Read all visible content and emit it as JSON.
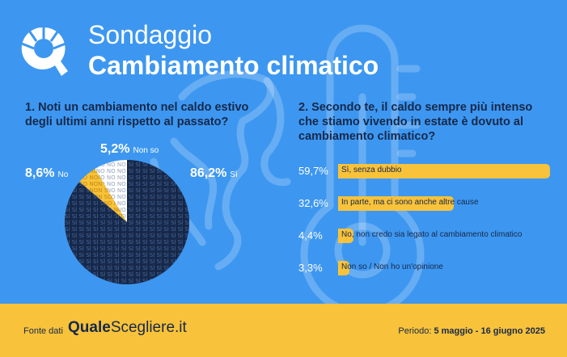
{
  "header": {
    "title_small": "Sondaggio",
    "title_big": "Cambiamento climatico"
  },
  "question1": "1. Noti un cambiamento nel caldo estivo degli ultimi anni rispetto al passato?",
  "question2": "2. Secondo te, il caldo sempre più intenso che stiamo vivendo in estate è dovuto al cambiamento climatico?",
  "chart_data": [
    {
      "type": "pie",
      "title": "1. Noti un cambiamento nel caldo estivo degli ultimi anni rispetto al passato?",
      "slices": [
        {
          "label": "Sì",
          "value": 86.2,
          "display": "86,2%",
          "pattern_word": "SÌ",
          "color": "#16284a"
        },
        {
          "label": "Non so",
          "value": 5.2,
          "display": "5,2%",
          "pattern_word": "NON SO",
          "color": "#f8c23a"
        },
        {
          "label": "No",
          "value": 8.6,
          "display": "8,6%",
          "pattern_word": "NO",
          "color": "#ffffff"
        }
      ]
    },
    {
      "type": "bar",
      "orientation": "horizontal",
      "title": "2. Secondo te, il caldo sempre più intenso che stiamo vivendo in estate è dovuto al cambiamento climatico?",
      "categories": [
        "Sì, senza dubbio",
        "In parte, ma ci sono anche altre cause",
        "No, non credo sia legato al cambiamento climatico",
        "Non so / Non ho un'opinione"
      ],
      "values": [
        59.7,
        32.6,
        4.4,
        3.3
      ],
      "display": [
        "59,7%",
        "32,6%",
        "4,4%",
        "3,3%"
      ],
      "xlim": [
        0,
        59.7
      ]
    }
  ],
  "footer": {
    "fonte_label": "Fonte dati",
    "brand_prefix": "Quale",
    "brand_rest": "Scegliere.it",
    "periodo_label": "Periodo:",
    "periodo_value": "5 maggio - 16 giugno 2025"
  },
  "colors": {
    "background": "#3d97f0",
    "accent": "#f8c23a",
    "dark": "#16284a"
  },
  "icons": [
    "qualescegliere-logo",
    "thermometer-illustration",
    "globe-illustration"
  ]
}
